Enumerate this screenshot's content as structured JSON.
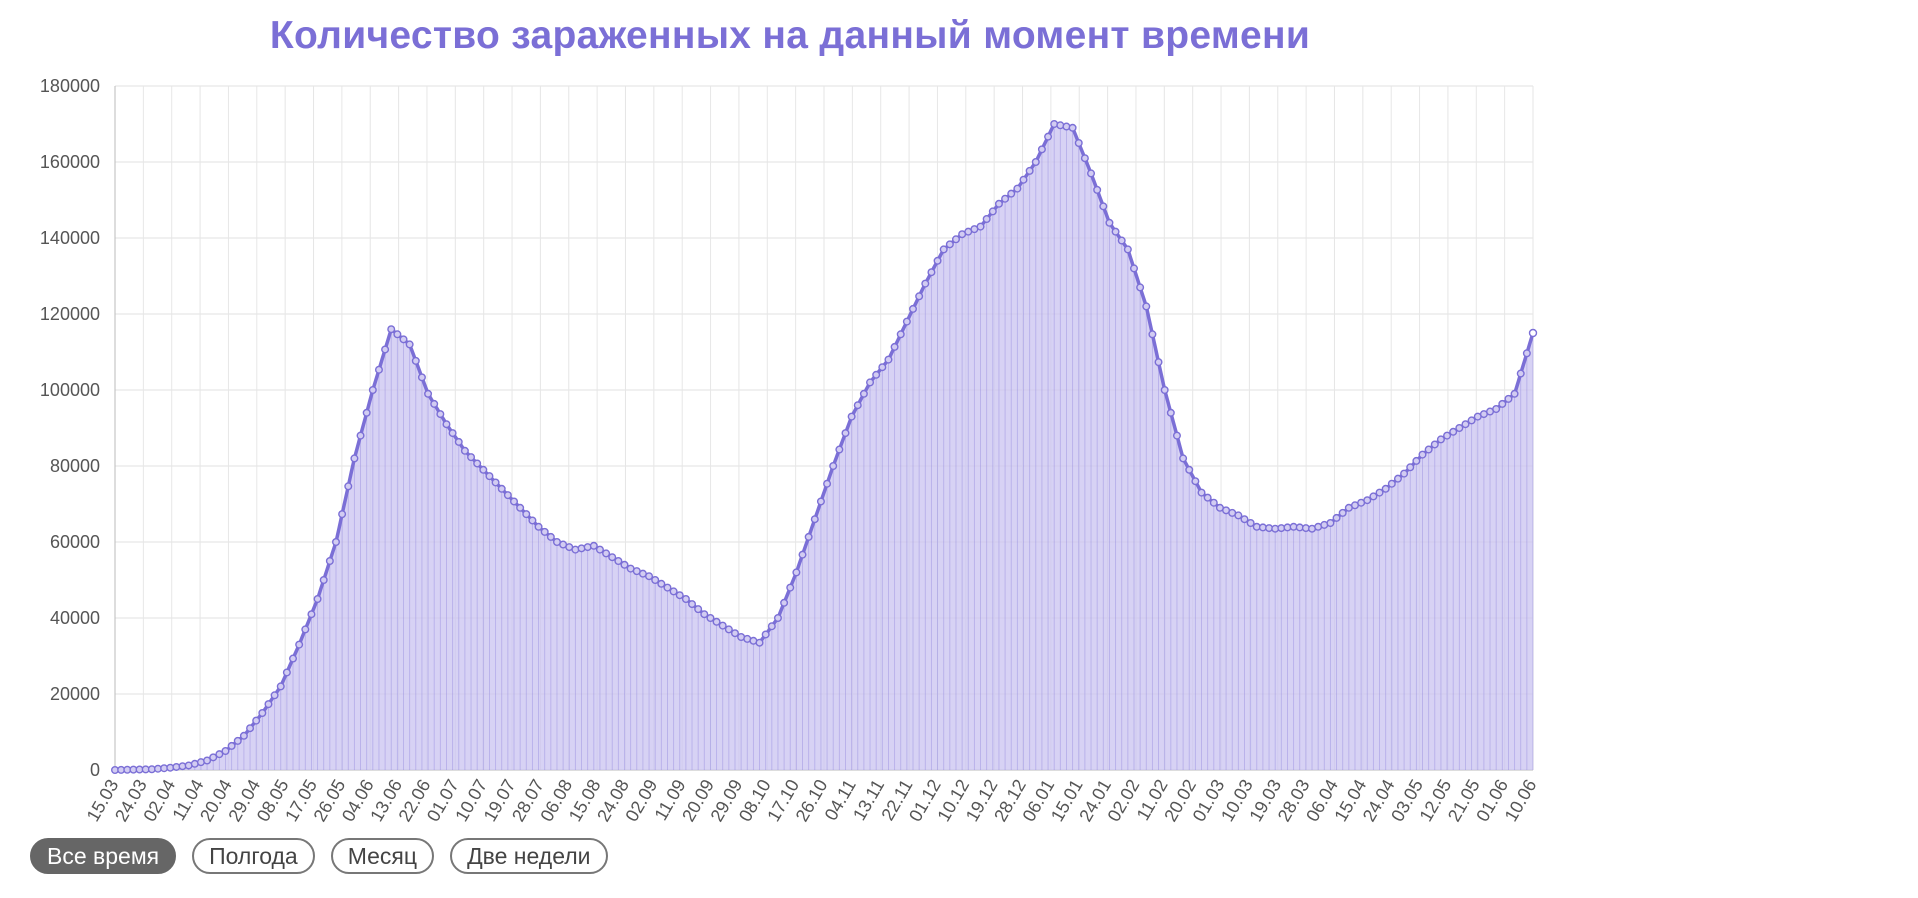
{
  "chart_data": {
    "type": "line",
    "title": "Количество зараженных на данный момент времени",
    "xlabel": "",
    "ylabel": "",
    "ylim": [
      0,
      180000
    ],
    "yticks": [
      "0",
      "20000",
      "40000",
      "60000",
      "80000",
      "100000",
      "120000",
      "140000",
      "160000",
      "180000"
    ],
    "x_tick_labels": [
      "15.03",
      "24.03",
      "02.04",
      "11.04",
      "20.04",
      "29.04",
      "08.05",
      "17.05",
      "26.05",
      "04.06",
      "13.06",
      "22.06",
      "01.07",
      "10.07",
      "19.07",
      "28.07",
      "06.08",
      "15.08",
      "24.08",
      "02.09",
      "11.09",
      "20.09",
      "29.09",
      "08.10",
      "17.10",
      "26.10",
      "04.11",
      "13.11",
      "22.11",
      "01.12",
      "10.12",
      "19.12",
      "28.12",
      "06.01",
      "15.01",
      "24.01",
      "02.02",
      "11.02",
      "20.02",
      "01.03",
      "10.03",
      "19.03",
      "28.03",
      "06.04",
      "15.04",
      "24.04",
      "03.05",
      "12.05",
      "21.05",
      "01.06",
      "10.06"
    ],
    "grid": true,
    "fill": "area",
    "series_color": "#7b6fd6",
    "fill_color": "#cac3f0",
    "series": [
      {
        "values": [
          0,
          100,
          200,
          600,
          1200,
          2500,
          5000,
          9000,
          15000,
          22000,
          33000,
          45000,
          60000,
          82000,
          100000,
          116000,
          112000,
          99000,
          91000,
          84000,
          79000,
          74000,
          69000,
          64000,
          60000,
          58000,
          59000,
          56000,
          53000,
          51000,
          48000,
          45000,
          41000,
          38000,
          35000,
          33500,
          40000,
          52000,
          66000,
          80000,
          93000,
          102000,
          108000,
          118000,
          128000,
          137000,
          141000,
          143000,
          149000,
          153000,
          160000,
          170000,
          169000,
          157000,
          144000,
          137000,
          122000,
          100000,
          82000,
          73000,
          69000,
          67000,
          64000,
          63500,
          64000,
          63500,
          65000,
          69000,
          71000,
          74000,
          78000,
          83000,
          87000,
          90000,
          93000,
          95000,
          99000,
          115000
        ]
      }
    ]
  },
  "range_buttons": [
    "Все время",
    "Полгода",
    "Месяц",
    "Две недели"
  ]
}
